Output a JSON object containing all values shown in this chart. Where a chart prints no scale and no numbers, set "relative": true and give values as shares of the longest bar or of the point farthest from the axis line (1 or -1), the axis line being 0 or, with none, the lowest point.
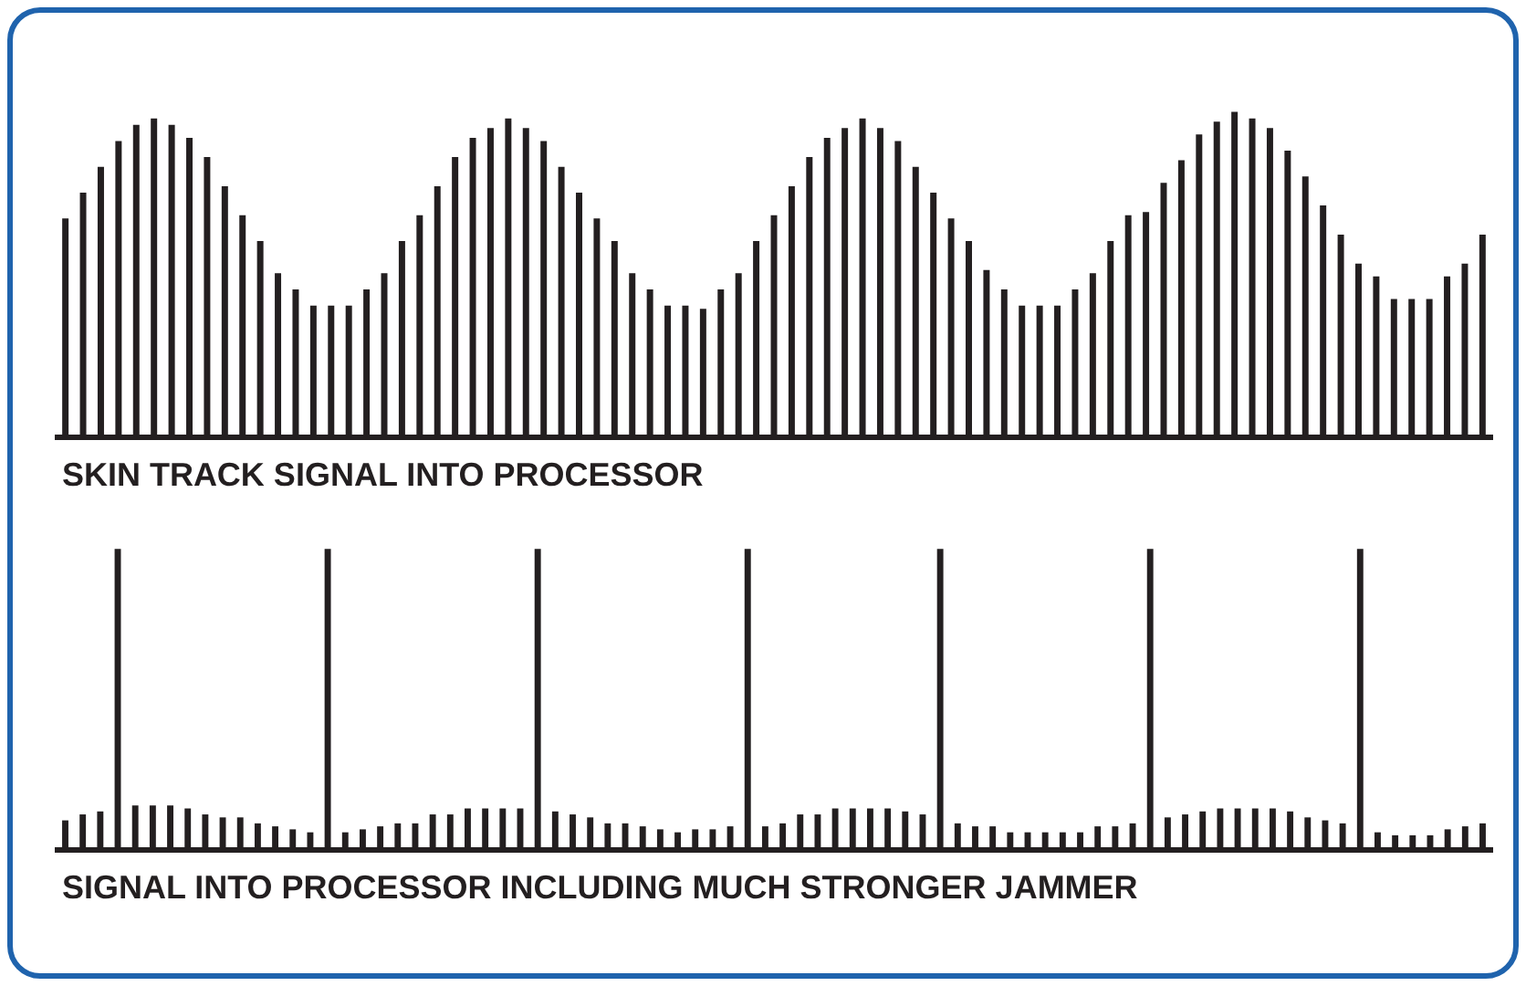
{
  "chart_data": [
    {
      "type": "bar",
      "title": "SKIN TRACK SIGNAL INTO PROCESSOR",
      "relative": true,
      "categories": [
        null,
        null,
        null,
        null,
        null,
        null,
        null,
        null,
        null,
        null,
        null,
        null,
        null,
        null,
        null,
        null,
        null,
        null,
        null,
        null,
        null,
        null,
        null,
        null,
        null,
        null,
        null,
        null,
        null,
        null,
        null,
        null,
        null,
        null,
        null,
        null,
        null,
        null,
        null,
        null,
        null,
        null,
        null,
        null,
        null,
        null,
        null,
        null,
        null,
        null,
        null,
        null,
        null,
        null,
        null,
        null,
        null,
        null,
        null,
        null,
        null,
        null,
        null,
        null,
        null,
        null,
        null,
        null,
        null,
        null,
        null,
        null,
        null,
        null,
        null,
        null,
        null,
        null,
        null,
        null,
        null
      ],
      "series": [
        {
          "color": "#231f20",
          "values": [
            0.67,
            0.75,
            0.83,
            0.91,
            0.96,
            0.98,
            0.96,
            0.92,
            0.86,
            0.77,
            0.68,
            0.6,
            0.5,
            0.45,
            0.4,
            0.4,
            0.4,
            0.45,
            0.5,
            0.6,
            0.68,
            0.77,
            0.86,
            0.92,
            0.95,
            0.98,
            0.95,
            0.91,
            0.83,
            0.75,
            0.67,
            0.6,
            0.5,
            0.45,
            0.4,
            0.4,
            0.39,
            0.45,
            0.5,
            0.6,
            0.68,
            0.77,
            0.86,
            0.92,
            0.95,
            0.98,
            0.95,
            0.91,
            0.83,
            0.75,
            0.67,
            0.6,
            0.51,
            0.45,
            0.4,
            0.4,
            0.4,
            0.45,
            0.5,
            0.6,
            0.68,
            0.69,
            0.78,
            0.85,
            0.93,
            0.97,
            1,
            0.98,
            0.95,
            0.88,
            0.8,
            0.71,
            0.62,
            0.53,
            0.49,
            0.42,
            0.42,
            0.42,
            0.49,
            0.53,
            0.62
          ]
        }
      ]
    },
    {
      "type": "bar",
      "title": "SIGNAL INTO PROCESSOR INCLUDING MUCH STRONGER JAMMER",
      "relative": true,
      "categories": [
        null,
        null,
        null,
        null,
        null,
        null,
        null,
        null,
        null,
        null,
        null,
        null,
        null,
        null,
        null,
        null,
        null,
        null,
        null,
        null,
        null,
        null,
        null,
        null,
        null,
        null,
        null,
        null,
        null,
        null,
        null,
        null,
        null,
        null,
        null,
        null,
        null,
        null,
        null,
        null,
        null,
        null,
        null,
        null,
        null,
        null,
        null,
        null,
        null,
        null,
        null,
        null,
        null,
        null,
        null,
        null,
        null,
        null,
        null,
        null,
        null,
        null,
        null,
        null,
        null,
        null,
        null,
        null,
        null,
        null,
        null,
        null,
        null,
        null,
        null,
        null,
        null,
        null,
        null,
        null,
        null,
        null
      ],
      "series": [
        {
          "color": "#231f20",
          "values": [
            0.09,
            0.11,
            0.12,
            1,
            0.14,
            0.14,
            0.14,
            0.13,
            0.11,
            0.1,
            0.1,
            0.08,
            0.07,
            0.06,
            0.05,
            1,
            0.05,
            0.06,
            0.07,
            0.08,
            0.08,
            0.11,
            0.11,
            0.13,
            0.13,
            0.13,
            0.13,
            1,
            0.12,
            0.11,
            0.1,
            0.08,
            0.08,
            0.07,
            0.06,
            0.05,
            0.06,
            0.06,
            0.07,
            1,
            0.07,
            0.08,
            0.11,
            0.11,
            0.13,
            0.13,
            0.13,
            0.13,
            0.12,
            0.11,
            1,
            0.08,
            0.07,
            0.07,
            0.05,
            0.05,
            0.05,
            0.05,
            0.05,
            0.07,
            0.07,
            0.08,
            1,
            0.1,
            0.11,
            0.12,
            0.13,
            0.13,
            0.13,
            0.13,
            0.12,
            0.1,
            0.09,
            0.08,
            1,
            0.05,
            0.04,
            0.04,
            0.04,
            0.06,
            0.07,
            0.08
          ]
        }
      ]
    }
  ]
}
